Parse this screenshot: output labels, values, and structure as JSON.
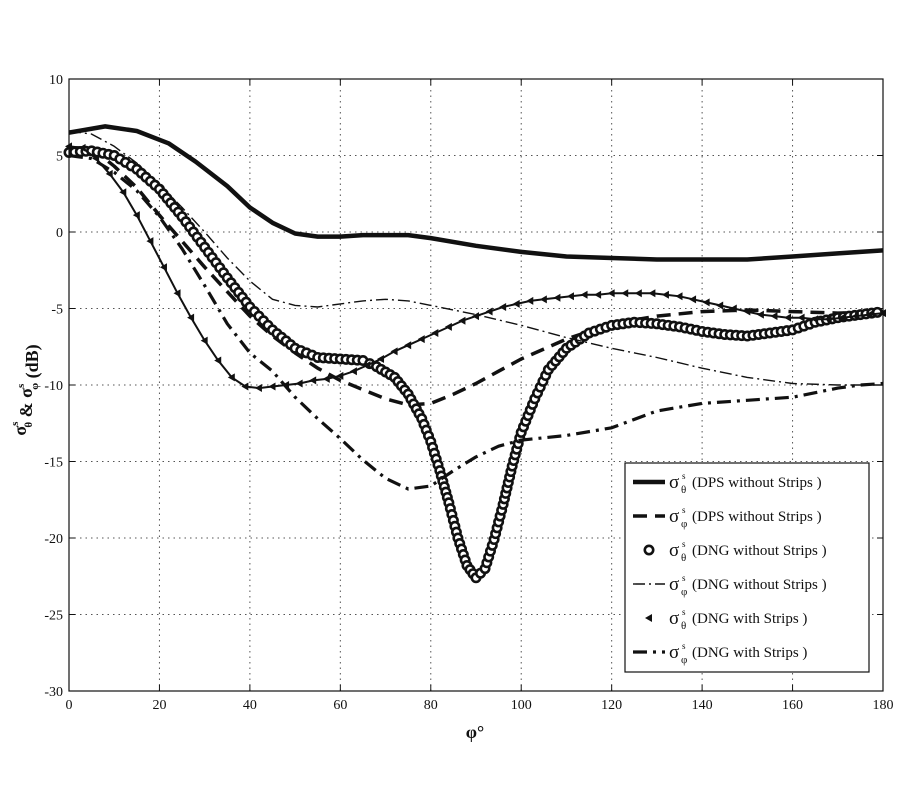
{
  "chart_data": {
    "type": "line",
    "xlabel": "φ°",
    "ylabel": "σ_θ^s & σ_φ^s (dB)",
    "xlim": [
      0,
      180
    ],
    "ylim": [
      -30,
      10
    ],
    "x_ticks": [
      0,
      20,
      40,
      60,
      80,
      100,
      120,
      140,
      160,
      180
    ],
    "y_ticks": [
      -30,
      -25,
      -20,
      -15,
      -10,
      -5,
      0,
      5,
      10
    ],
    "grid": true,
    "legend_position": "bottom-right",
    "legend_symbol_theta": "σ",
    "legend_symbol_phi": "σ",
    "legend_sub_theta": "θ",
    "legend_sub_phi": "φ",
    "legend_sup": "s",
    "series": [
      {
        "name": "(DPS without Strips )",
        "component": "theta",
        "style": "solid-thick",
        "x": [
          0,
          8,
          15,
          22,
          28,
          35,
          40,
          45,
          50,
          55,
          60,
          65,
          70,
          75,
          80,
          90,
          100,
          110,
          120,
          130,
          140,
          150,
          160,
          170,
          180
        ],
        "y": [
          6.5,
          6.9,
          6.6,
          5.8,
          4.6,
          3.0,
          1.6,
          0.6,
          -0.1,
          -0.3,
          -0.3,
          -0.2,
          -0.2,
          -0.2,
          -0.4,
          -0.9,
          -1.3,
          -1.6,
          -1.7,
          -1.8,
          -1.8,
          -1.8,
          -1.6,
          -1.4,
          -1.2
        ]
      },
      {
        "name": "(DPS without Strips )",
        "component": "phi",
        "style": "dashed-thick",
        "x": [
          0,
          5,
          10,
          15,
          20,
          25,
          30,
          35,
          40,
          45,
          50,
          55,
          60,
          65,
          70,
          75,
          80,
          85,
          90,
          95,
          100,
          110,
          120,
          130,
          140,
          150,
          160,
          170,
          180
        ],
        "y": [
          5.5,
          5.5,
          4.3,
          2.9,
          1.1,
          -0.6,
          -2.3,
          -3.9,
          -5.5,
          -6.8,
          -7.9,
          -8.9,
          -9.7,
          -10.3,
          -10.9,
          -11.3,
          -11.2,
          -10.6,
          -9.9,
          -9.1,
          -8.3,
          -7.0,
          -6.0,
          -5.5,
          -5.2,
          -5.1,
          -5.2,
          -5.3,
          -5.2
        ]
      },
      {
        "name": "(DNG without Strips )",
        "component": "theta",
        "style": "circles",
        "x": [
          0,
          5,
          10,
          15,
          20,
          25,
          30,
          35,
          40,
          45,
          50,
          55,
          60,
          65,
          68,
          72,
          75,
          78,
          80,
          82,
          84,
          86,
          88,
          90,
          92,
          94,
          96,
          98,
          100,
          103,
          106,
          110,
          115,
          120,
          125,
          130,
          135,
          140,
          145,
          150,
          155,
          160,
          165,
          170,
          175,
          180
        ],
        "y": [
          5.2,
          5.3,
          5.0,
          4.1,
          2.8,
          1.0,
          -1.0,
          -3.0,
          -4.9,
          -6.4,
          -7.6,
          -8.2,
          -8.3,
          -8.4,
          -8.8,
          -9.5,
          -10.6,
          -12.2,
          -13.7,
          -15.6,
          -17.7,
          -20.0,
          -21.8,
          -22.6,
          -22.0,
          -20.1,
          -17.8,
          -15.3,
          -13.1,
          -10.9,
          -9.0,
          -7.6,
          -6.6,
          -6.1,
          -5.9,
          -6.0,
          -6.2,
          -6.5,
          -6.7,
          -6.8,
          -6.6,
          -6.4,
          -5.9,
          -5.6,
          -5.4,
          -5.2
        ]
      },
      {
        "name": "(DNG without Strips )",
        "component": "phi",
        "style": "dash-dot-thin",
        "x": [
          0,
          5,
          10,
          15,
          20,
          25,
          30,
          35,
          40,
          45,
          50,
          55,
          60,
          65,
          70,
          75,
          80,
          90,
          100,
          110,
          120,
          130,
          140,
          150,
          160,
          170,
          180
        ],
        "y": [
          6.6,
          6.4,
          5.6,
          4.5,
          3.1,
          1.6,
          0.0,
          -1.7,
          -3.2,
          -4.4,
          -4.8,
          -4.9,
          -4.7,
          -4.5,
          -4.4,
          -4.5,
          -4.8,
          -5.4,
          -6.1,
          -6.9,
          -7.6,
          -8.2,
          -8.9,
          -9.5,
          -9.9,
          -10.0,
          -10.0
        ]
      },
      {
        "name": "(DNG with Strips )",
        "component": "theta",
        "style": "triangles",
        "x": [
          0,
          3,
          6,
          9,
          12,
          15,
          18,
          21,
          24,
          27,
          30,
          33,
          36,
          39,
          42,
          45,
          48,
          51,
          54,
          57,
          60,
          63,
          66,
          69,
          72,
          75,
          78,
          81,
          84,
          87,
          90,
          93,
          96,
          99,
          102,
          105,
          108,
          111,
          114,
          117,
          120,
          123,
          126,
          129,
          132,
          135,
          138,
          141,
          144,
          147,
          150,
          153,
          156,
          159,
          162,
          165,
          168,
          171,
          174,
          177,
          180
        ],
        "y": [
          5.6,
          5.5,
          4.8,
          3.8,
          2.6,
          1.1,
          -0.6,
          -2.3,
          -4.0,
          -5.6,
          -7.1,
          -8.4,
          -9.5,
          -10.1,
          -10.2,
          -10.1,
          -10.0,
          -9.9,
          -9.7,
          -9.6,
          -9.4,
          -9.1,
          -8.7,
          -8.3,
          -7.8,
          -7.4,
          -7.0,
          -6.6,
          -6.2,
          -5.8,
          -5.5,
          -5.2,
          -4.9,
          -4.7,
          -4.5,
          -4.4,
          -4.3,
          -4.2,
          -4.1,
          -4.1,
          -4.0,
          -4.0,
          -4.0,
          -4.0,
          -4.1,
          -4.2,
          -4.4,
          -4.6,
          -4.8,
          -5.0,
          -5.2,
          -5.4,
          -5.5,
          -5.6,
          -5.6,
          -5.7,
          -5.7,
          -5.6,
          -5.5,
          -5.4,
          -5.3
        ]
      },
      {
        "name": "(DNG with Strips )",
        "component": "phi",
        "style": "dash-dot-thick",
        "x": [
          0,
          5,
          10,
          15,
          20,
          25,
          30,
          35,
          40,
          45,
          50,
          55,
          60,
          65,
          70,
          75,
          80,
          85,
          90,
          95,
          100,
          110,
          120,
          130,
          140,
          150,
          160,
          165,
          170,
          175,
          180
        ],
        "y": [
          5.0,
          4.8,
          3.9,
          2.7,
          1.0,
          -1.1,
          -3.5,
          -6.0,
          -7.9,
          -9.1,
          -10.8,
          -12.2,
          -13.5,
          -14.9,
          -16.1,
          -16.8,
          -16.6,
          -15.6,
          -14.7,
          -14.0,
          -13.6,
          -13.3,
          -12.8,
          -11.7,
          -11.2,
          -11.0,
          -10.8,
          -10.5,
          -10.2,
          -10.0,
          -9.9
        ]
      }
    ]
  }
}
